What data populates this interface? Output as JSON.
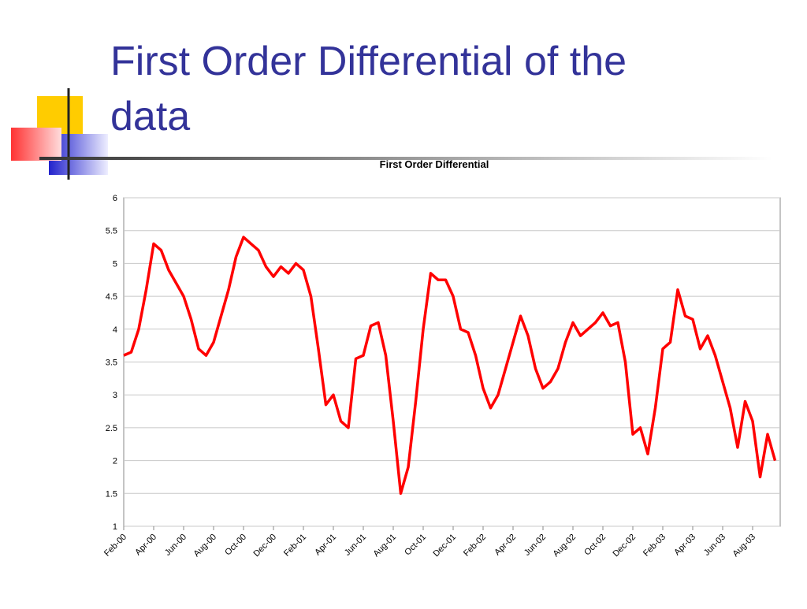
{
  "slide_title": "First Order Differential of the data",
  "chart_data": {
    "type": "line",
    "title": "First Order Differential",
    "categories": [
      "Feb-00",
      null,
      null,
      null,
      "Apr-00",
      null,
      null,
      null,
      "Jun-00",
      null,
      null,
      null,
      "Aug-00",
      null,
      null,
      null,
      "Oct-00",
      null,
      null,
      null,
      "Dec-00",
      null,
      null,
      null,
      "Feb-01",
      null,
      null,
      null,
      "Apr-01",
      null,
      null,
      null,
      "Jun-01",
      null,
      null,
      null,
      "Aug-01",
      null,
      null,
      null,
      "Oct-01",
      null,
      null,
      null,
      "Dec-01",
      null,
      null,
      null,
      "Feb-02",
      null,
      null,
      null,
      "Apr-02",
      null,
      null,
      null,
      "Jun-02",
      null,
      null,
      null,
      "Aug-02",
      null,
      null,
      null,
      "Oct-02",
      null,
      null,
      null,
      "Dec-02",
      null,
      null,
      null,
      "Feb-03",
      null,
      null,
      null,
      "Apr-03",
      null,
      null,
      null,
      "Jun-03",
      null,
      null,
      null,
      "Aug-03",
      null,
      null,
      null
    ],
    "values": [
      3.6,
      3.65,
      4.0,
      4.6,
      5.3,
      5.2,
      4.9,
      4.7,
      4.5,
      4.15,
      3.7,
      3.6,
      3.8,
      4.2,
      4.6,
      5.1,
      5.4,
      5.3,
      5.2,
      4.95,
      4.8,
      4.95,
      4.85,
      5.0,
      4.9,
      4.5,
      3.7,
      2.85,
      3.0,
      2.6,
      2.5,
      3.55,
      3.6,
      4.05,
      4.1,
      3.6,
      2.6,
      1.5,
      1.9,
      2.9,
      4.0,
      4.85,
      4.75,
      4.75,
      4.5,
      4.0,
      3.95,
      3.6,
      3.1,
      2.8,
      3.0,
      3.4,
      3.8,
      4.2,
      3.9,
      3.4,
      3.1,
      3.2,
      3.4,
      3.8,
      4.1,
      3.9,
      4.0,
      4.1,
      4.25,
      4.05,
      4.1,
      3.5,
      2.4,
      2.5,
      2.1,
      2.8,
      3.7,
      3.8,
      4.6,
      4.2,
      4.15,
      3.7,
      3.9,
      3.6,
      3.2,
      2.8,
      2.2,
      2.9,
      2.6,
      1.75,
      2.4,
      2.0
    ],
    "color": "#ff0000",
    "ylim": [
      1,
      6
    ],
    "yticks": [
      1,
      1.5,
      2,
      2.5,
      3,
      3.5,
      4,
      4.5,
      5,
      5.5,
      6
    ],
    "grid": true
  }
}
